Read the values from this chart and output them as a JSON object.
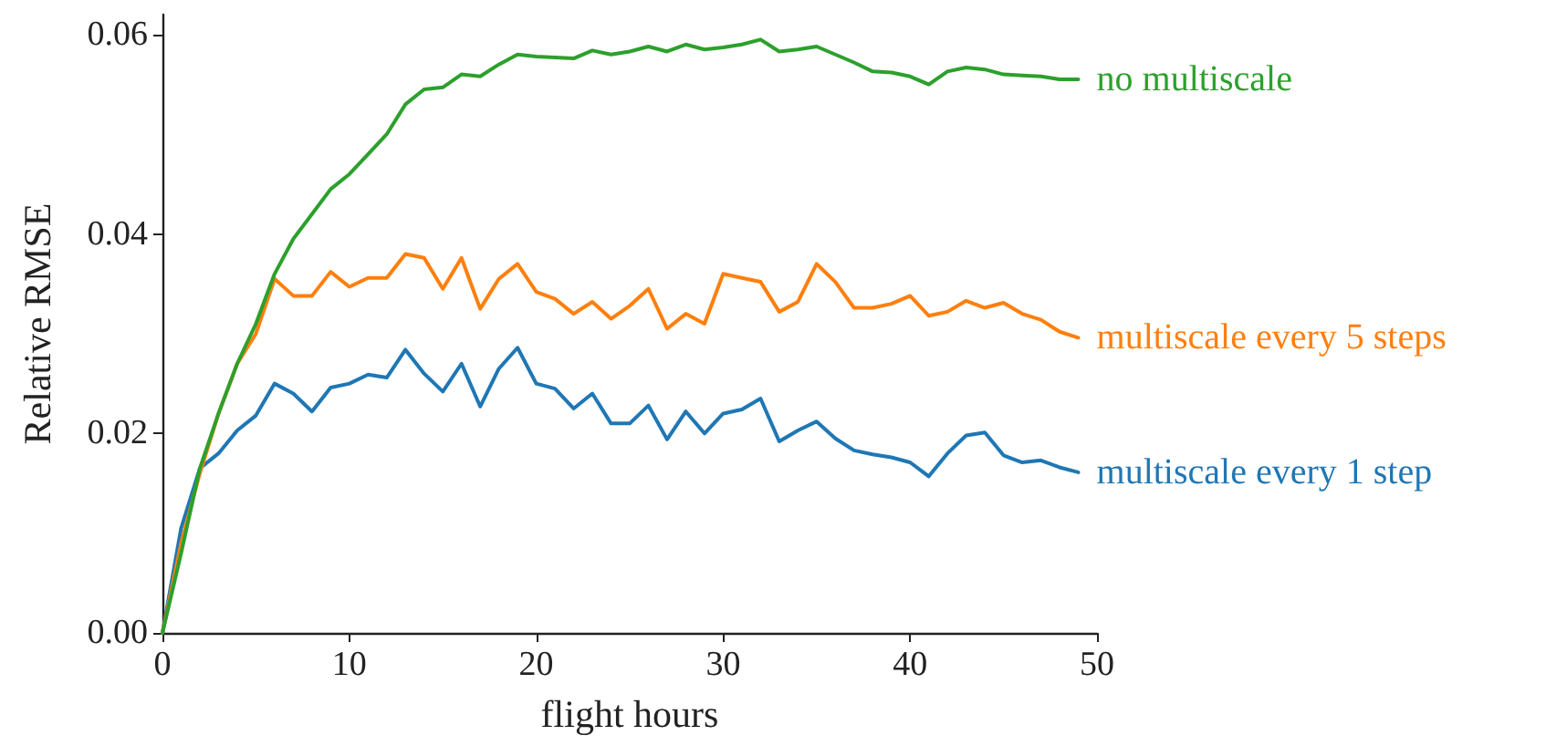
{
  "chart_data": {
    "type": "line",
    "xlabel": "flight hours",
    "ylabel": "Relative RMSE",
    "x": [
      0,
      1,
      2,
      3,
      4,
      5,
      6,
      7,
      8,
      9,
      10,
      11,
      12,
      13,
      14,
      15,
      16,
      17,
      18,
      19,
      20,
      21,
      22,
      23,
      24,
      25,
      26,
      27,
      28,
      29,
      30,
      31,
      32,
      33,
      34,
      35,
      36,
      37,
      38,
      39,
      40,
      41,
      42,
      43,
      44,
      45,
      46,
      47,
      48,
      49
    ],
    "series": [
      {
        "name": "multiscale every 1 step",
        "color": "#1f77b4",
        "values": [
          0,
          0.0105,
          0.0165,
          0.018,
          0.0203,
          0.0218,
          0.025,
          0.024,
          0.0222,
          0.0246,
          0.025,
          0.0259,
          0.0256,
          0.0284,
          0.026,
          0.0242,
          0.027,
          0.0227,
          0.0265,
          0.0286,
          0.025,
          0.0245,
          0.0225,
          0.024,
          0.021,
          0.021,
          0.0228,
          0.0194,
          0.0222,
          0.02,
          0.022,
          0.0224,
          0.0235,
          0.0192,
          0.0203,
          0.0212,
          0.0195,
          0.0183,
          0.0179,
          0.0176,
          0.0171,
          0.0157,
          0.018,
          0.0198,
          0.0201,
          0.0178,
          0.0171,
          0.0173,
          0.0166,
          0.0161
        ]
      },
      {
        "name": "multiscale every 5 steps",
        "color": "#ff7f0e",
        "values": [
          0,
          0.009,
          0.016,
          0.022,
          0.027,
          0.03,
          0.0355,
          0.0338,
          0.0338,
          0.0362,
          0.0347,
          0.0356,
          0.0356,
          0.038,
          0.0376,
          0.0345,
          0.0376,
          0.0325,
          0.0355,
          0.037,
          0.0342,
          0.0335,
          0.032,
          0.0332,
          0.0315,
          0.0328,
          0.0345,
          0.0305,
          0.032,
          0.031,
          0.036,
          0.0356,
          0.0352,
          0.0322,
          0.0332,
          0.037,
          0.0352,
          0.0326,
          0.0326,
          0.033,
          0.0338,
          0.0318,
          0.0322,
          0.0333,
          0.0326,
          0.0331,
          0.032,
          0.0314,
          0.0302,
          0.0296
        ]
      },
      {
        "name": "no multiscale",
        "color": "#2ca02c",
        "values": [
          0,
          0.008,
          0.0165,
          0.022,
          0.027,
          0.031,
          0.036,
          0.0395,
          0.042,
          0.0445,
          0.046,
          0.048,
          0.05,
          0.053,
          0.0545,
          0.0547,
          0.056,
          0.0558,
          0.057,
          0.058,
          0.0578,
          0.0577,
          0.0576,
          0.0584,
          0.058,
          0.0583,
          0.0588,
          0.0583,
          0.059,
          0.0585,
          0.0587,
          0.059,
          0.0595,
          0.0583,
          0.0585,
          0.0588,
          0.058,
          0.0572,
          0.0563,
          0.0562,
          0.0558,
          0.055,
          0.0563,
          0.0567,
          0.0565,
          0.056,
          0.0559,
          0.0558,
          0.0555,
          0.0555
        ]
      }
    ],
    "xlim": [
      0,
      50
    ],
    "xticks": [
      0,
      10,
      20,
      30,
      40,
      50
    ],
    "ylim": [
      0,
      0.062
    ],
    "yticks": [
      {
        "value": 0,
        "label": "0.00"
      },
      {
        "value": 0.02,
        "label": "0.02"
      },
      {
        "value": 0.04,
        "label": "0.04"
      },
      {
        "value": 0.06,
        "label": "0.06"
      }
    ],
    "grid": false,
    "legend": false,
    "marker": "none",
    "line_style": "solid"
  }
}
